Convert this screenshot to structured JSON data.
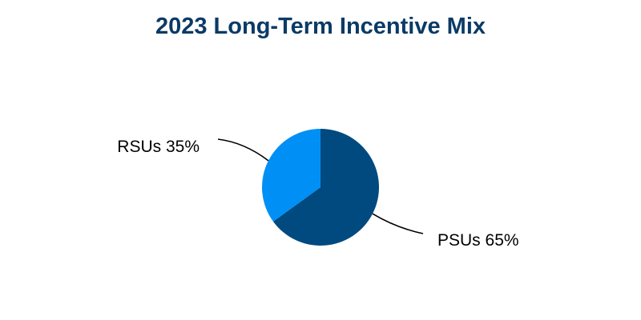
{
  "chart_data": {
    "type": "pie",
    "title": "2023 Long-Term Incentive Mix",
    "slices": [
      {
        "label": "PSUs",
        "value": 65,
        "display": "PSUs 65%",
        "color": "#004A80"
      },
      {
        "label": "RSUs",
        "value": 35,
        "display": "RSUs 35%",
        "color": "#0090F5"
      }
    ],
    "start_angle_deg": 0,
    "direction": "clockwise",
    "legend": "none",
    "label_style": "outside with leader lines"
  },
  "colors": {
    "title": "#0B3A66",
    "leader_line": "#000000"
  }
}
